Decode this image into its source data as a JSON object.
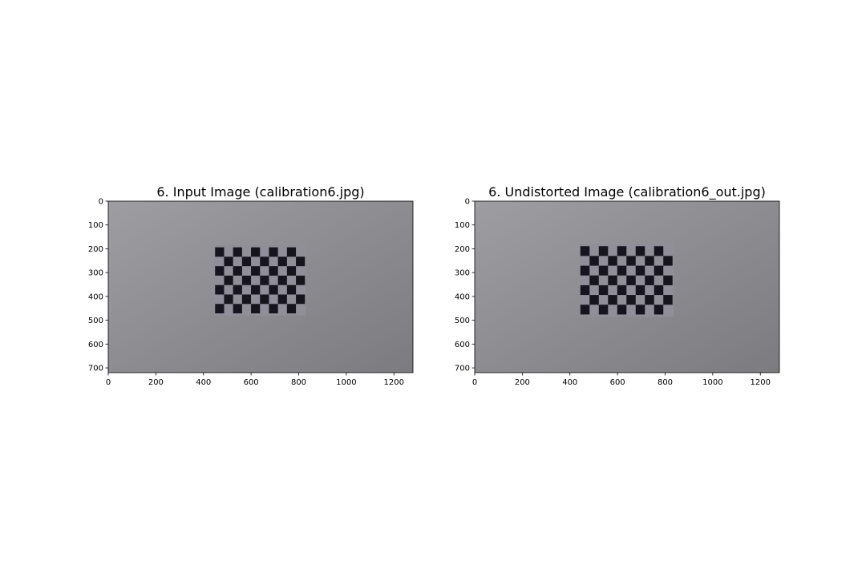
{
  "chart_data": [
    {
      "type": "image",
      "title": "6. Input Image (calibration6.jpg)",
      "xlim": [
        0,
        1280
      ],
      "ylim": [
        720,
        0
      ],
      "xticks": [
        0,
        200,
        400,
        600,
        800,
        1000,
        1200
      ],
      "yticks": [
        0,
        100,
        200,
        300,
        400,
        500,
        600,
        700
      ],
      "checkerboard": {
        "x_range": [
          445,
          830
        ],
        "y_range": [
          185,
          480
        ],
        "cols": 10,
        "rows": 7
      }
    },
    {
      "type": "image",
      "title": "6. Undistorted Image (calibration6_out.jpg)",
      "xlim": [
        0,
        1280
      ],
      "ylim": [
        720,
        0
      ],
      "xticks": [
        0,
        200,
        400,
        600,
        800,
        1000,
        1200
      ],
      "yticks": [
        0,
        100,
        200,
        300,
        400,
        500,
        600,
        700
      ],
      "checkerboard": {
        "x_range": [
          440,
          835
        ],
        "y_range": [
          180,
          485
        ],
        "cols": 10,
        "rows": 7
      }
    }
  ],
  "colors": {
    "background_top": "#9e9ea2",
    "background_bottom": "#7c7c80",
    "board_light": "#8f8e99",
    "board_dark": "#16141c"
  }
}
